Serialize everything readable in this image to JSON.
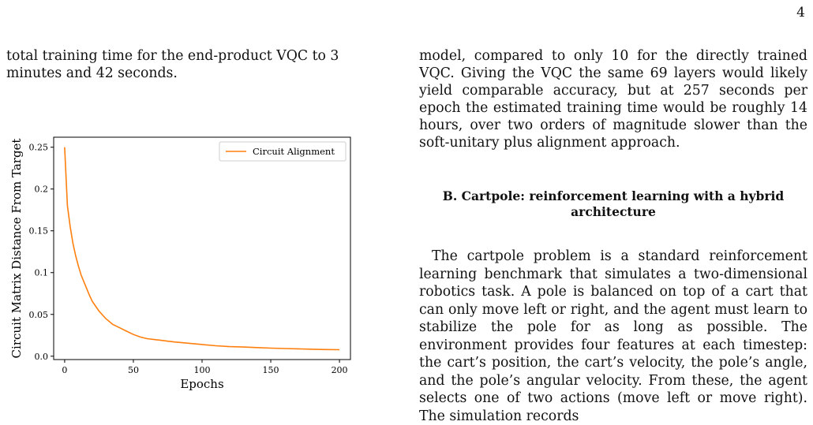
{
  "page_number": "4",
  "left_column_text": "total training time for the end-product VQC to 3 minutes and 42 seconds.",
  "right_column_text": "model, compared to only 10 for the directly trained VQC. Giving the VQC the same 69 layers would likely yield comparable accuracy, but at 257 seconds per epoch the estimated training time would be roughly 14 hours, over two orders of magnitude slower than the soft-unitary plus alignment approach.",
  "section_heading": "B.   Cartpole: reinforcement learning with a hybrid architecture",
  "body_paragraph": "The cartpole problem is a standard reinforcement learning benchmark that simulates a two-dimensional robotics task. A pole is balanced on top of a cart that can only move left or right, and the agent must learn to stabilize the pole for as long as possible. The environment provides four features at each timestep: the cart’s position, the cart’s velocity, the pole’s angle, and the pole’s angular velocity. From these, the agent selects one of two actions (move left or move right). The simulation records",
  "chart_data": {
    "type": "line",
    "xlabel": "Epochs",
    "ylabel": "Circuit Matrix Distance From Target",
    "xlim": [
      -8,
      208
    ],
    "ylim": [
      -0.004,
      0.262
    ],
    "xticks": [
      0,
      50,
      100,
      150,
      200
    ],
    "yticks": [
      0.0,
      0.05,
      0.1,
      0.15,
      0.2,
      0.25
    ],
    "xtick_labels": [
      "0",
      "50",
      "100",
      "150",
      "200"
    ],
    "ytick_labels": [
      "0.0",
      "0.05",
      "0.1",
      "0.15",
      "0.2",
      "0.25"
    ],
    "legend_position": "top-right",
    "grid": false,
    "series": [
      {
        "name": "Circuit Alignment",
        "color": "#ff7f0e",
        "x": [
          0,
          2,
          4,
          6,
          8,
          10,
          12,
          15,
          18,
          20,
          25,
          30,
          35,
          40,
          45,
          50,
          55,
          60,
          65,
          70,
          75,
          80,
          90,
          100,
          110,
          120,
          130,
          140,
          150,
          160,
          170,
          180,
          190,
          200
        ],
        "y": [
          0.25,
          0.18,
          0.155,
          0.135,
          0.12,
          0.108,
          0.097,
          0.085,
          0.073,
          0.066,
          0.054,
          0.045,
          0.038,
          0.034,
          0.03,
          0.026,
          0.023,
          0.021,
          0.02,
          0.019,
          0.018,
          0.017,
          0.0155,
          0.014,
          0.0125,
          0.0115,
          0.011,
          0.0103,
          0.0097,
          0.0092,
          0.0088,
          0.0084,
          0.008,
          0.0078
        ]
      }
    ]
  }
}
